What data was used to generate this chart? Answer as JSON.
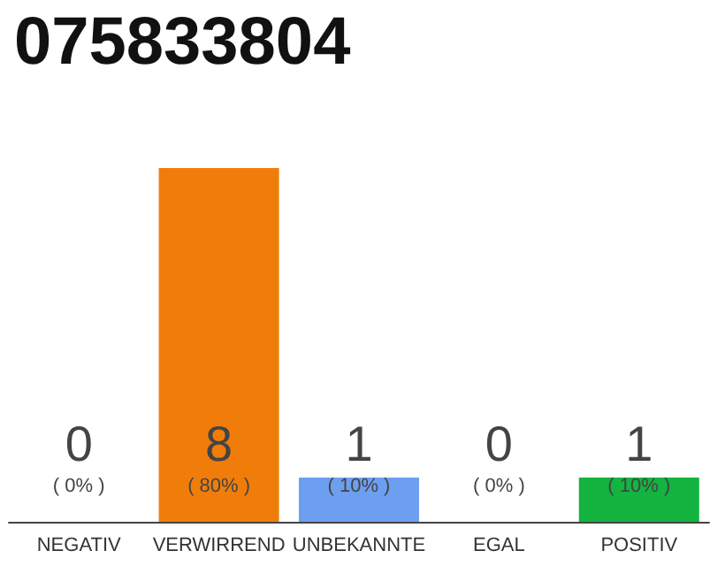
{
  "chart_data": {
    "type": "bar",
    "title": "075833804",
    "categories": [
      "NEGATIV",
      "VERWIRREND",
      "UNBEKANNTE",
      "EGAL",
      "POSITIV"
    ],
    "values": [
      0,
      8,
      1,
      0,
      1
    ],
    "value_labels": [
      "0\n( 0% )",
      "8\n( 80% )",
      "1\n( 10% )",
      "0\n( 0% )",
      "1\n( 10% )"
    ],
    "colors": [
      "#aaaaaa",
      "#f07d0a",
      "#6c9ff0",
      "#aaaaaa",
      "#13b440"
    ],
    "tick_labels": "x"
  }
}
